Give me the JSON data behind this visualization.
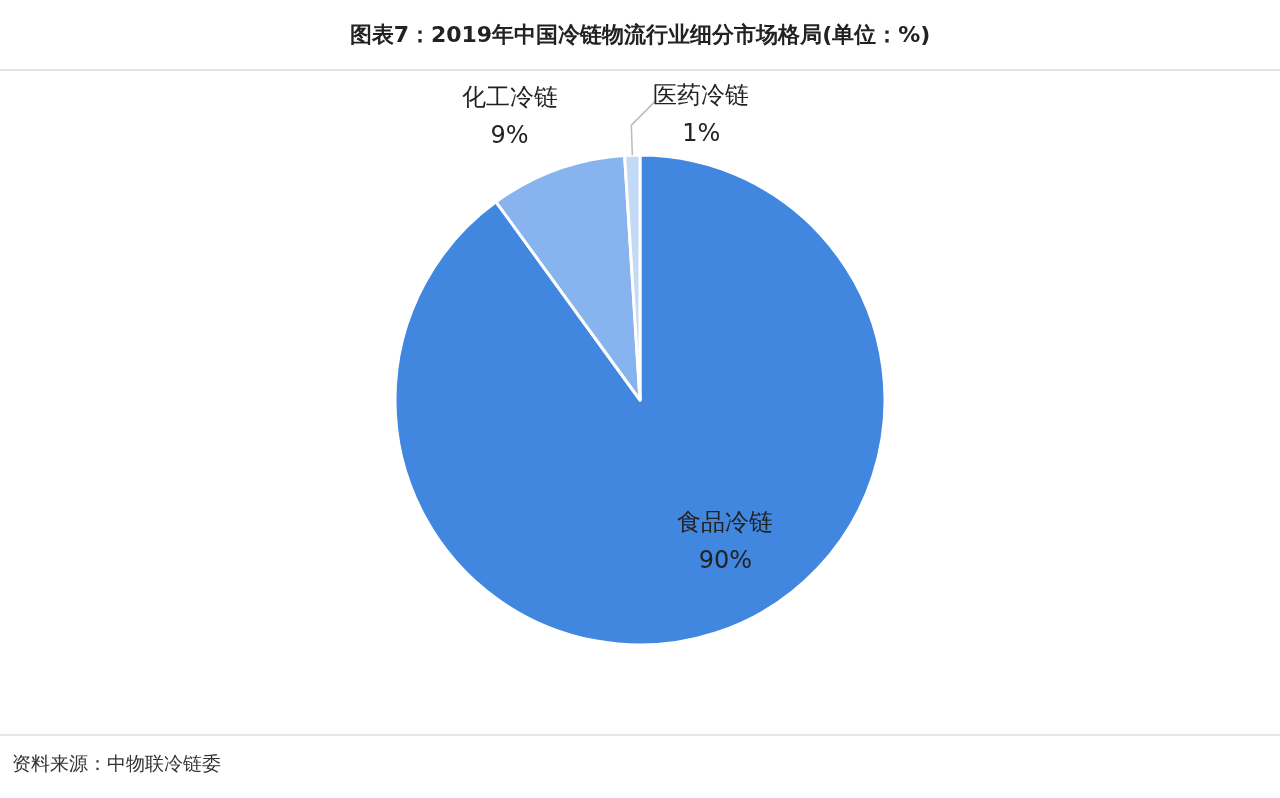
{
  "chart_data": {
    "type": "pie",
    "title": "图表7：2019年中国冷链物流行业细分市场格局(单位：%)",
    "categories": [
      "食品冷链",
      "化工冷链",
      "医药冷链"
    ],
    "values": [
      90,
      9,
      1
    ],
    "value_labels": [
      "90%",
      "9%",
      "1%"
    ],
    "colors": [
      "#4187e0",
      "#87b3ef",
      "#c3daf7"
    ],
    "annotations": [
      "资料来源：中物联冷链委"
    ]
  }
}
